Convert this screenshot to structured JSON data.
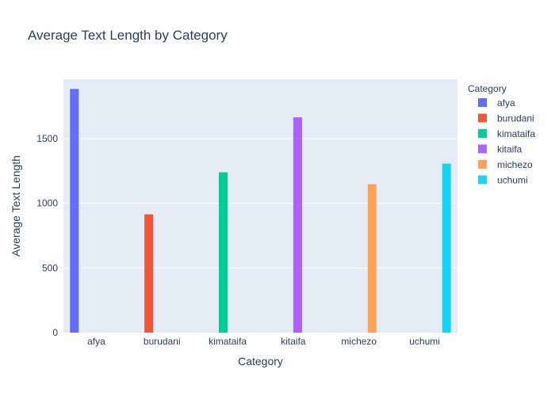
{
  "chart_data": {
    "type": "bar",
    "title": "Average Text Length by Category",
    "xlabel": "Category",
    "ylabel": "Average Text Length",
    "categories": [
      "afya",
      "burudani",
      "kimataifa",
      "kitaifa",
      "michezo",
      "uchumi"
    ],
    "ylim": [
      0,
      1960
    ],
    "yticks": [
      0,
      500,
      1000,
      1500
    ],
    "ytick_labels": [
      "0",
      "500",
      "1000",
      "1500"
    ],
    "legend_title": "Category",
    "legend_position": "right",
    "grid": true,
    "plot_background": "#e5ecf6",
    "series": [
      {
        "name": "afya",
        "color": "#636efa",
        "category": "afya",
        "value": 1885
      },
      {
        "name": "burudani",
        "color": "#ef553b",
        "category": "burudani",
        "value": 915
      },
      {
        "name": "kimataifa",
        "color": "#00cc96",
        "category": "kimataifa",
        "value": 1240
      },
      {
        "name": "kitaifa",
        "color": "#ab63fa",
        "category": "kitaifa",
        "value": 1665
      },
      {
        "name": "michezo",
        "color": "#ffa15a",
        "category": "michezo",
        "value": 1148
      },
      {
        "name": "uchumi",
        "color": "#19d3f3",
        "category": "uchumi",
        "value": 1307
      }
    ]
  }
}
